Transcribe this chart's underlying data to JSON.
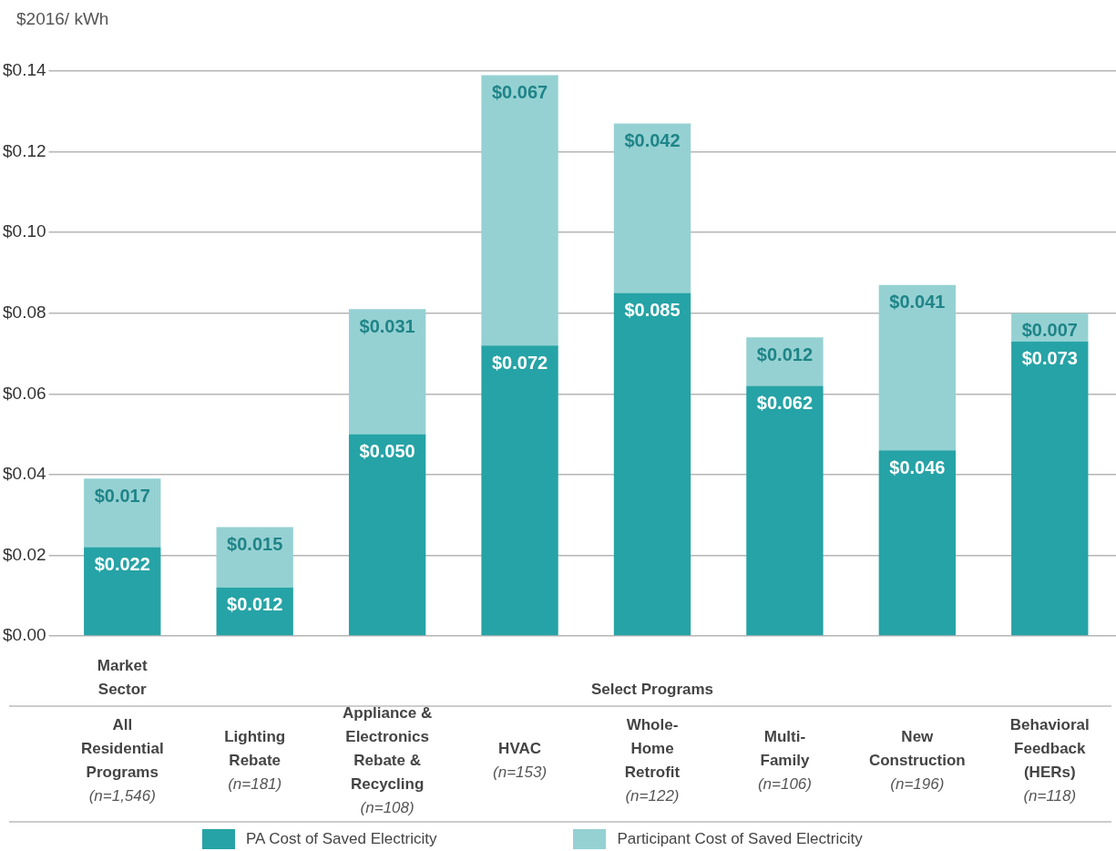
{
  "chart_data": {
    "type": "bar",
    "stacked": true,
    "ylabel": "$2016/ kWh",
    "categories": [
      "All\nResidential\nPrograms\n(n=1,546)",
      "Lighting\nRebate\n(n=181)",
      "Appliance &\nElectronics\nRebate &\nRecycling\n(n=108)",
      "HVAC\n(n=153)",
      "Whole-\nHome\nRetrofit\n(n=122)",
      "Multi-\nFamily\n(n=106)",
      "New\nConstruction\n(n=196)",
      "Behavioral\nFeedback\n(HERs)\n(n=118)"
    ],
    "series": [
      {
        "name": "PA Cost of Saved Electricity",
        "color": "#26a3a6",
        "values": [
          0.022,
          0.012,
          0.05,
          0.072,
          0.085,
          0.062,
          0.046,
          0.073
        ],
        "value_labels": [
          "$0.022",
          "$0.012",
          "$0.050",
          "$0.072",
          "$0.085",
          "$0.062",
          "$0.046",
          "$0.073"
        ]
      },
      {
        "name": "Participant Cost of Saved Electricity",
        "color": "#95d1d3",
        "values": [
          0.017,
          0.015,
          0.031,
          0.067,
          0.042,
          0.012,
          0.041,
          0.007
        ],
        "value_labels": [
          "$0.017",
          "$0.015",
          "$0.031",
          "$0.067",
          "$0.042",
          "$0.012",
          "$0.041",
          "$0.007"
        ]
      }
    ],
    "ylim": [
      0,
      0.14
    ],
    "yticks": [
      {
        "value": 0,
        "label": "$0.00"
      },
      {
        "value": 0.02,
        "label": "$0.02"
      },
      {
        "value": 0.04,
        "label": "$0.04"
      },
      {
        "value": 0.06,
        "label": "$0.06"
      },
      {
        "value": 0.08,
        "label": "$0.08"
      },
      {
        "value": 0.1,
        "label": "$0.10"
      },
      {
        "value": 0.12,
        "label": "$0.12"
      },
      {
        "value": 0.14,
        "label": "$0.14"
      }
    ],
    "grid": "y",
    "legend": "bottom",
    "annotations": [
      "Market\nSector",
      "Select Programs"
    ]
  }
}
